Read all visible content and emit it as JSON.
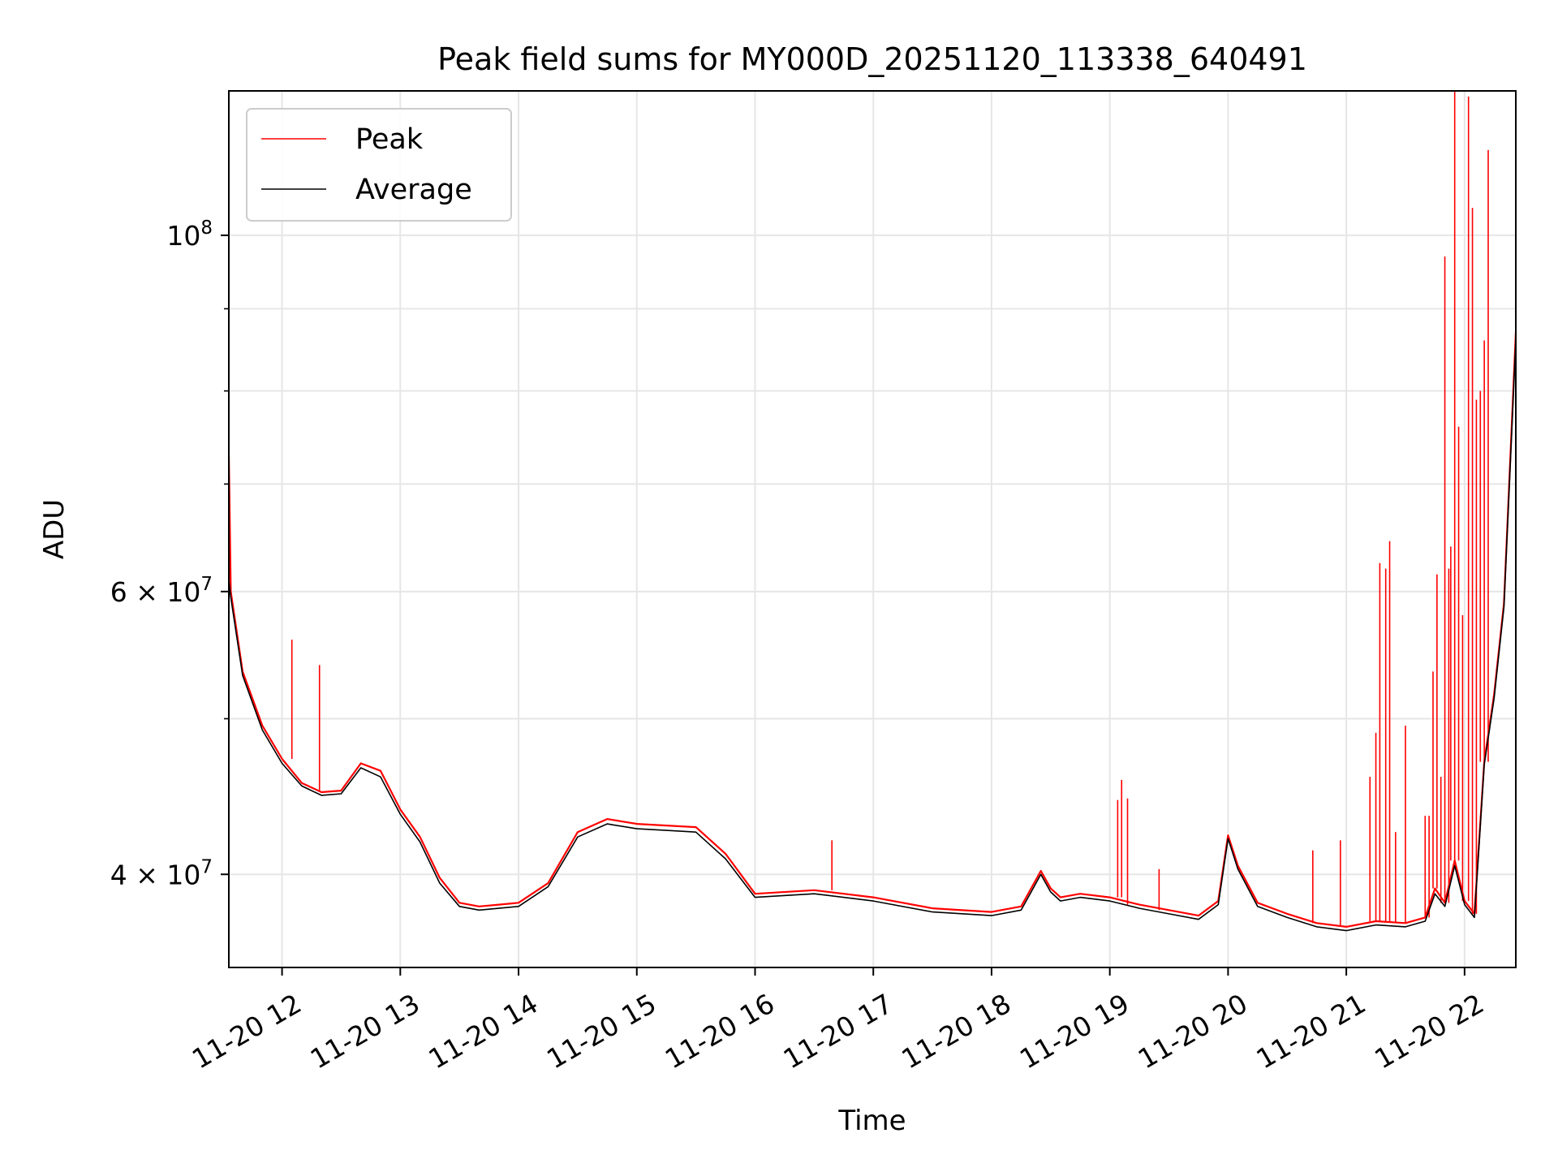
{
  "chart_data": {
    "type": "line",
    "title": "Peak field sums for MY000D_20251120_113338_640491",
    "xlabel": "Time",
    "ylabel": "ADU",
    "yscale": "log",
    "grid": true,
    "legend_position": "top-left",
    "xlim": [
      "2025-11-20 11:33",
      "2025-11-20 22:26"
    ],
    "ylim": [
      35000000,
      123000000
    ],
    "x_ticks": [
      {
        "value": "2025-11-20 12:00",
        "label": "11-20 12"
      },
      {
        "value": "2025-11-20 13:00",
        "label": "11-20 13"
      },
      {
        "value": "2025-11-20 14:00",
        "label": "11-20 14"
      },
      {
        "value": "2025-11-20 15:00",
        "label": "11-20 15"
      },
      {
        "value": "2025-11-20 16:00",
        "label": "11-20 16"
      },
      {
        "value": "2025-11-20 17:00",
        "label": "11-20 17"
      },
      {
        "value": "2025-11-20 18:00",
        "label": "11-20 18"
      },
      {
        "value": "2025-11-20 19:00",
        "label": "11-20 19"
      },
      {
        "value": "2025-11-20 20:00",
        "label": "11-20 20"
      },
      {
        "value": "2025-11-20 21:00",
        "label": "11-20 21"
      },
      {
        "value": "2025-11-20 22:00",
        "label": "11-20 22"
      }
    ],
    "y_ticks": [
      {
        "value": 40000000,
        "mantissa": "4",
        "exponent": "7"
      },
      {
        "value": 60000000,
        "mantissa": "6",
        "exponent": "7"
      },
      {
        "value": 100000000,
        "mantissa": "10",
        "exponent": "8"
      }
    ],
    "y_minor_ticks": [
      50000000,
      70000000,
      80000000,
      90000000
    ],
    "series": [
      {
        "name": "Peak",
        "color": "#ff0000",
        "x": [
          "2025-11-20 11:33",
          "2025-11-20 11:34",
          "2025-11-20 11:40",
          "2025-11-20 11:50",
          "2025-11-20 12:00",
          "2025-11-20 12:10",
          "2025-11-20 12:20",
          "2025-11-20 12:30",
          "2025-11-20 12:40",
          "2025-11-20 12:50",
          "2025-11-20 13:00",
          "2025-11-20 13:10",
          "2025-11-20 13:20",
          "2025-11-20 13:30",
          "2025-11-20 13:40",
          "2025-11-20 13:50",
          "2025-11-20 14:00",
          "2025-11-20 14:15",
          "2025-11-20 14:30",
          "2025-11-20 14:45",
          "2025-11-20 15:00",
          "2025-11-20 15:15",
          "2025-11-20 15:30",
          "2025-11-20 15:45",
          "2025-11-20 16:00",
          "2025-11-20 16:30",
          "2025-11-20 17:00",
          "2025-11-20 17:30",
          "2025-11-20 18:00",
          "2025-11-20 18:15",
          "2025-11-20 18:25",
          "2025-11-20 18:30",
          "2025-11-20 18:35",
          "2025-11-20 18:45",
          "2025-11-20 19:00",
          "2025-11-20 19:15",
          "2025-11-20 19:30",
          "2025-11-20 19:45",
          "2025-11-20 19:55",
          "2025-11-20 20:00",
          "2025-11-20 20:05",
          "2025-11-20 20:15",
          "2025-11-20 20:30",
          "2025-11-20 20:45",
          "2025-11-20 21:00",
          "2025-11-20 21:15",
          "2025-11-20 21:30",
          "2025-11-20 21:40",
          "2025-11-20 21:45",
          "2025-11-20 21:50",
          "2025-11-20 21:55",
          "2025-11-20 22:00",
          "2025-11-20 22:05",
          "2025-11-20 22:10",
          "2025-11-20 22:15",
          "2025-11-20 22:20",
          "2025-11-20 22:26"
        ],
        "y": [
          73000000,
          60000000,
          53500000,
          49500000,
          47200000,
          45600000,
          45000000,
          45100000,
          46900000,
          46400000,
          43900000,
          42200000,
          39800000,
          38400000,
          38200000,
          38300000,
          38400000,
          39500000,
          42500000,
          43300000,
          43000000,
          42900000,
          42800000,
          41200000,
          38900000,
          39100000,
          38700000,
          38100000,
          37900000,
          38200000,
          40200000,
          39200000,
          38700000,
          38900000,
          38700000,
          38300000,
          38000000,
          37700000,
          38500000,
          42300000,
          40500000,
          38400000,
          37800000,
          37300000,
          37100000,
          37400000,
          37300000,
          37600000,
          39200000,
          38400000,
          40800000,
          38500000,
          37800000,
          47000000,
          51800000,
          59000000,
          87000000
        ],
        "spikes": [
          {
            "x": "2025-11-20 12:05",
            "y": 56000000
          },
          {
            "x": "2025-11-20 12:19",
            "y": 54000000
          },
          {
            "x": "2025-11-20 16:39",
            "y": 42000000
          },
          {
            "x": "2025-11-20 19:04",
            "y": 44500000
          },
          {
            "x": "2025-11-20 19:06",
            "y": 45800000
          },
          {
            "x": "2025-11-20 19:09",
            "y": 44600000
          },
          {
            "x": "2025-11-20 19:25",
            "y": 40300000
          },
          {
            "x": "2025-11-20 20:43",
            "y": 41400000
          },
          {
            "x": "2025-11-20 20:57",
            "y": 42000000
          },
          {
            "x": "2025-11-20 21:12",
            "y": 46000000
          },
          {
            "x": "2025-11-20 21:15",
            "y": 49000000
          },
          {
            "x": "2025-11-20 21:17",
            "y": 62500000
          },
          {
            "x": "2025-11-20 21:20",
            "y": 62000000
          },
          {
            "x": "2025-11-20 21:22",
            "y": 64500000
          },
          {
            "x": "2025-11-20 21:25",
            "y": 42500000
          },
          {
            "x": "2025-11-20 21:30",
            "y": 49500000
          },
          {
            "x": "2025-11-20 21:40",
            "y": 43500000
          },
          {
            "x": "2025-11-20 21:42",
            "y": 43500000
          },
          {
            "x": "2025-11-20 21:44",
            "y": 53500000
          },
          {
            "x": "2025-11-20 21:46",
            "y": 61500000
          },
          {
            "x": "2025-11-20 21:48",
            "y": 46000000
          },
          {
            "x": "2025-11-20 21:50",
            "y": 97000000
          },
          {
            "x": "2025-11-20 21:52",
            "y": 62000000
          },
          {
            "x": "2025-11-20 21:53",
            "y": 64000000
          },
          {
            "x": "2025-11-20 21:55",
            "y": 123000000
          },
          {
            "x": "2025-11-20 21:57",
            "y": 76000000
          },
          {
            "x": "2025-11-20 21:59",
            "y": 58000000
          },
          {
            "x": "2025-11-20 22:02",
            "y": 122000000
          },
          {
            "x": "2025-11-20 22:04",
            "y": 104000000
          },
          {
            "x": "2025-11-20 22:06",
            "y": 79000000
          },
          {
            "x": "2025-11-20 22:08",
            "y": 80000000
          },
          {
            "x": "2025-11-20 22:10",
            "y": 86000000
          },
          {
            "x": "2025-11-20 22:12",
            "y": 113000000
          }
        ]
      },
      {
        "name": "Average",
        "color": "#000000",
        "x": [
          "2025-11-20 11:33",
          "2025-11-20 11:34",
          "2025-11-20 11:40",
          "2025-11-20 11:50",
          "2025-11-20 12:00",
          "2025-11-20 12:10",
          "2025-11-20 12:20",
          "2025-11-20 12:30",
          "2025-11-20 12:40",
          "2025-11-20 12:50",
          "2025-11-20 13:00",
          "2025-11-20 13:10",
          "2025-11-20 13:20",
          "2025-11-20 13:30",
          "2025-11-20 13:40",
          "2025-11-20 13:50",
          "2025-11-20 14:00",
          "2025-11-20 14:15",
          "2025-11-20 14:30",
          "2025-11-20 14:45",
          "2025-11-20 15:00",
          "2025-11-20 15:15",
          "2025-11-20 15:30",
          "2025-11-20 15:45",
          "2025-11-20 16:00",
          "2025-11-20 16:30",
          "2025-11-20 17:00",
          "2025-11-20 17:30",
          "2025-11-20 18:00",
          "2025-11-20 18:15",
          "2025-11-20 18:25",
          "2025-11-20 18:30",
          "2025-11-20 18:35",
          "2025-11-20 18:45",
          "2025-11-20 19:00",
          "2025-11-20 19:15",
          "2025-11-20 19:30",
          "2025-11-20 19:45",
          "2025-11-20 19:55",
          "2025-11-20 20:00",
          "2025-11-20 20:05",
          "2025-11-20 20:15",
          "2025-11-20 20:30",
          "2025-11-20 20:45",
          "2025-11-20 21:00",
          "2025-11-20 21:15",
          "2025-11-20 21:30",
          "2025-11-20 21:40",
          "2025-11-20 21:45",
          "2025-11-20 21:50",
          "2025-11-20 21:55",
          "2025-11-20 22:00",
          "2025-11-20 22:05",
          "2025-11-20 22:10",
          "2025-11-20 22:15",
          "2025-11-20 22:20",
          "2025-11-20 22:26"
        ],
        "y": [
          61000000,
          59500000,
          53200000,
          49200000,
          46900000,
          45400000,
          44800000,
          44900000,
          46600000,
          46000000,
          43600000,
          41900000,
          39500000,
          38200000,
          38000000,
          38100000,
          38200000,
          39300000,
          42200000,
          43000000,
          42700000,
          42600000,
          42500000,
          40900000,
          38700000,
          38900000,
          38500000,
          37900000,
          37700000,
          38000000,
          40000000,
          39000000,
          38500000,
          38700000,
          38500000,
          38100000,
          37800000,
          37500000,
          38300000,
          42100000,
          40300000,
          38200000,
          37600000,
          37100000,
          36900000,
          37200000,
          37100000,
          37400000,
          38900000,
          38200000,
          40500000,
          38300000,
          37600000,
          46800000,
          51500000,
          58700000,
          86000000
        ]
      }
    ]
  }
}
